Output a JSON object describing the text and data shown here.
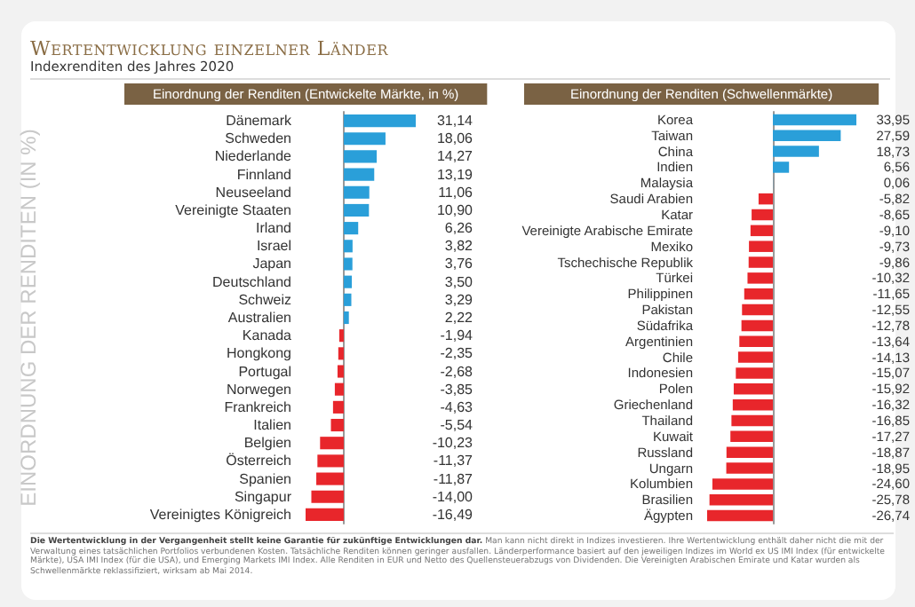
{
  "chart_data": [
    {
      "type": "bar",
      "orientation": "horizontal",
      "title": "Einordnung der Renditen (Entwickelte Märkte, in %)",
      "ylabel": "EINORDNUNG DER RENDITEN (IN %)",
      "annotations": [
        "Wertentwicklung einzelner Länder",
        "Indexrenditen des Jahres 2020",
        "Die Wertentwicklung in der Vergangenheit stellt keine Garantie für zukünftige Entwicklungen dar.",
        "Man kann nicht direkt in Indizes investieren. Ihre Wertentwicklung enthält daher nicht die mit der Verwaltung eines tatsächlichen Portfolios verbundenen Kosten. Tatsächliche Renditen können geringer ausfallen. Länderperformance basiert auf den jeweiligen Indizes im World ex US IMI Index (für entwickelte Märkte), USA IMI Index (für die USA), und Emerging Markets IMI Index. Alle Renditen in EUR und Netto des Quellensteuerabzugs von Dividenden. Die Vereinigten Arabischen Emirate und Katar wurden als Schwellenmärkte reklassifiziert, wirksam ab Mai 2014."
      ],
      "categories": [
        "Dänemark",
        "Schweden",
        "Niederlande",
        "Finnland",
        "Neuseeland",
        "Vereinigte Staaten",
        "Irland",
        "Israel",
        "Japan",
        "Deutschland",
        "Schweiz",
        "Australien",
        "Kanada",
        "Hongkong",
        "Portugal",
        "Norwegen",
        "Frankreich",
        "Italien",
        "Belgien",
        "Österreich",
        "Spanien",
        "Singapur",
        "Vereinigtes Königreich"
      ],
      "values": [
        31.14,
        18.06,
        14.27,
        13.19,
        11.06,
        10.9,
        6.26,
        3.82,
        3.76,
        3.5,
        3.29,
        2.22,
        -1.94,
        -2.35,
        -2.68,
        -3.85,
        -4.63,
        -5.54,
        -10.23,
        -11.37,
        -11.87,
        -14.0,
        -16.49
      ],
      "value_labels": [
        "31,14",
        "18,06",
        "14,27",
        "13,19",
        "11,06",
        "10,90",
        "6,26",
        "3,82",
        "3,76",
        "3,50",
        "3,29",
        "2,22",
        "-1,94",
        "-2,35",
        "-2,68",
        "-3,85",
        "-4,63",
        "-5,54",
        "-10,23",
        "-11,37",
        "-11,87",
        "-14,00",
        "-16,49"
      ],
      "colors": [
        "#2a9fd9",
        "#2a9fd9",
        "#2a9fd9",
        "#2a9fd9",
        "#2a9fd9",
        "#2a9fd9",
        "#2a9fd9",
        "#2a9fd9",
        "#2a9fd9",
        "#2a9fd9",
        "#2a9fd9",
        "#2a9fd9",
        "#e8262b",
        "#e8262b",
        "#e8262b",
        "#e8262b",
        "#e8262b",
        "#e8262b",
        "#e8262b",
        "#e8262b",
        "#e8262b",
        "#e8262b",
        "#e8262b"
      ]
    },
    {
      "type": "bar",
      "orientation": "horizontal",
      "title": "Einordnung der Renditen (Schwellenmärkte)",
      "categories": [
        "Korea",
        "Taiwan",
        "China",
        "Indien",
        "Malaysia",
        "Saudi Arabien",
        "Katar",
        "Vereinigte Arabische Emirate",
        "Mexiko",
        "Tschechische Republik",
        "Türkei",
        "Philippinen",
        "Pakistan",
        "Südafrika",
        "Argentinien",
        "Chile",
        "Indonesien",
        "Polen",
        "Griechenland",
        "Thailand",
        "Kuwait",
        "Russland",
        "Ungarn",
        "Kolumbien",
        "Brasilien",
        "Ägypten"
      ],
      "values": [
        33.95,
        27.59,
        18.73,
        6.56,
        0.06,
        -5.82,
        -8.65,
        -9.1,
        -9.73,
        -9.86,
        -10.32,
        -11.65,
        -12.55,
        -12.78,
        -13.64,
        -14.13,
        -15.07,
        -15.92,
        -16.32,
        -16.85,
        -17.27,
        -18.87,
        -18.95,
        -24.6,
        -25.78,
        -26.74
      ],
      "value_labels": [
        "33,95",
        "27,59",
        "18,73",
        "6,56",
        "0,06",
        "-5,82",
        "-8,65",
        "-9,10",
        "-9,73",
        "-9,86",
        "-10,32",
        "-11,65",
        "-12,55",
        "-12,78",
        "-13,64",
        "-14,13",
        "-15,07",
        "-15,92",
        "-16,32",
        "-16,85",
        "-17,27",
        "-18,87",
        "-18,95",
        "-24,60",
        "-25,78",
        "-26,74"
      ],
      "colors": [
        "#2a9fd9",
        "#2a9fd9",
        "#2a9fd9",
        "#2a9fd9",
        "#2a9fd9",
        "#e8262b",
        "#e8262b",
        "#e8262b",
        "#e8262b",
        "#e8262b",
        "#e8262b",
        "#e8262b",
        "#e8262b",
        "#e8262b",
        "#e8262b",
        "#e8262b",
        "#e8262b",
        "#e8262b",
        "#e8262b",
        "#e8262b",
        "#e8262b",
        "#e8262b",
        "#e8262b",
        "#e8262b",
        "#e8262b",
        "#e8262b"
      ]
    }
  ]
}
